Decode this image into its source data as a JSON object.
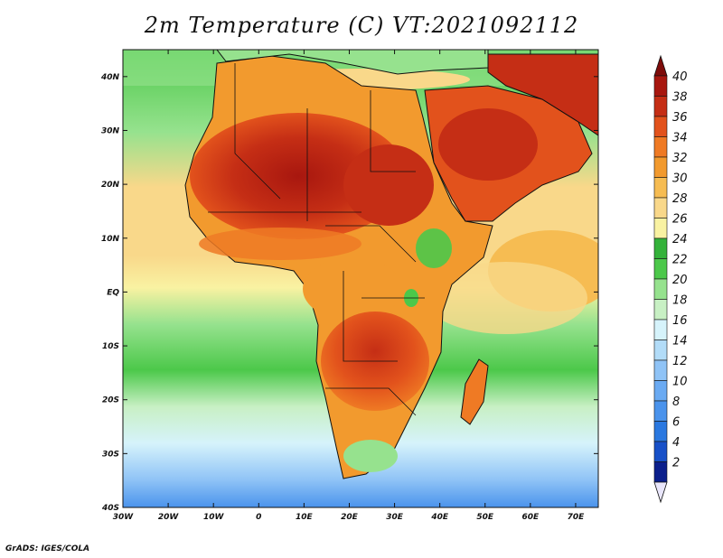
{
  "title": "2m Temperature (C) VT:2021092112",
  "credit": "GrADS: IGES/COLA",
  "map": {
    "region": "Africa",
    "variable": "2m Temperature",
    "units": "C",
    "lon_range": [
      -30,
      75
    ],
    "lat_range": [
      -40,
      45
    ],
    "lon_ticks": [
      "30W",
      "20W",
      "10W",
      "0",
      "10E",
      "20E",
      "30E",
      "40E",
      "50E",
      "60E",
      "70E"
    ],
    "lat_ticks": [
      "40S",
      "30S",
      "20S",
      "10S",
      "EQ",
      "10N",
      "20N",
      "30N",
      "40N"
    ]
  },
  "colorbar": {
    "levels": [
      "2",
      "4",
      "6",
      "8",
      "10",
      "12",
      "14",
      "16",
      "18",
      "20",
      "22",
      "24",
      "26",
      "28",
      "30",
      "32",
      "34",
      "36",
      "38",
      "40"
    ],
    "colors": [
      "#0b1f8c",
      "#1750c8",
      "#2a78e0",
      "#4a93ec",
      "#6aaaf2",
      "#8fc3f6",
      "#b2dcf8",
      "#d6f3fb",
      "#c8f0c4",
      "#96e28e",
      "#4cc84a",
      "#34b23a",
      "#f9f2a2",
      "#f9d88a",
      "#f6bc52",
      "#f29a2e",
      "#ef7a24",
      "#e2521c",
      "#c52e15",
      "#a8170f",
      "#7e0c0a"
    ],
    "under_color": "#e9e6fb",
    "over_color": "#7e0c0a"
  }
}
